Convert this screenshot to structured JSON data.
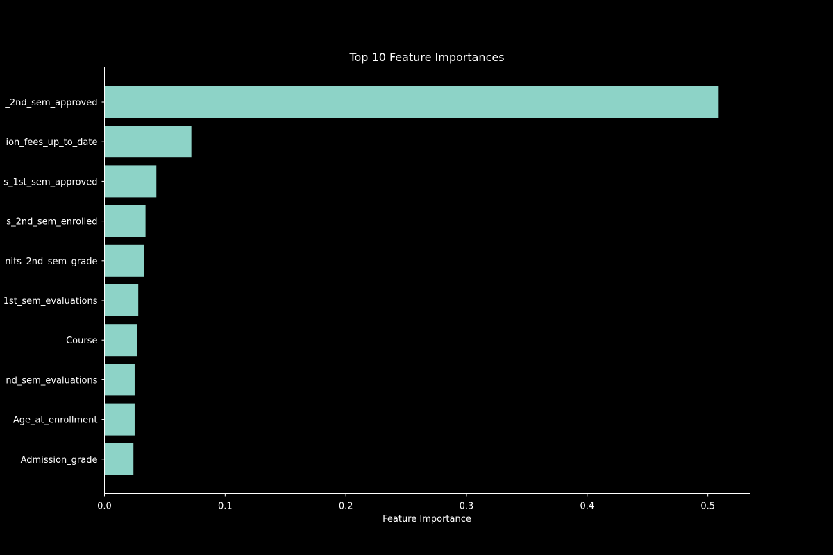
{
  "colors": {
    "background": "#000000",
    "bar": "#8dd3c7",
    "axis": "#ffffff",
    "text": "#ffffff"
  },
  "chart_data": {
    "type": "bar",
    "orientation": "horizontal",
    "title": "Top 10 Feature Importances",
    "xlabel": "Feature Importance",
    "ylabel": "",
    "xlim": [
      0,
      0.535
    ],
    "x_ticks": [
      0.0,
      0.1,
      0.2,
      0.3,
      0.4,
      0.5
    ],
    "x_tick_labels": [
      "0.0",
      "0.1",
      "0.2",
      "0.3",
      "0.4",
      "0.5"
    ],
    "grid": false,
    "categories": [
      "_2nd_sem_approved",
      "ion_fees_up_to_date",
      "s_1st_sem_approved",
      "s_2nd_sem_enrolled",
      "nits_2nd_sem_grade",
      "1st_sem_evaluations",
      "Course",
      "nd_sem_evaluations",
      "Age_at_enrollment",
      "Admission_grade"
    ],
    "values": [
      0.509,
      0.072,
      0.043,
      0.034,
      0.033,
      0.028,
      0.027,
      0.025,
      0.025,
      0.024
    ]
  }
}
